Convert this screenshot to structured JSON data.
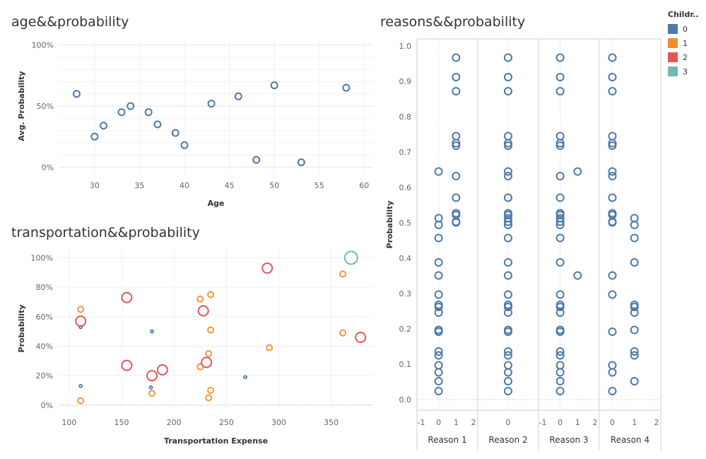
{
  "titles": {
    "age": "age&&probability",
    "transport": "transportation&&probability",
    "reasons": "reasons&&probability"
  },
  "legend": {
    "title": "Childr..",
    "items": [
      {
        "label": "0",
        "color": "#4e79a7"
      },
      {
        "label": "1",
        "color": "#f28e2b"
      },
      {
        "label": "2",
        "color": "#e15759"
      },
      {
        "label": "3",
        "color": "#76b7b2"
      }
    ]
  },
  "chart_data": [
    {
      "type": "scatter",
      "title": "age&&probability",
      "xlabel": "Age",
      "ylabel": "Avg. Probability",
      "xlim": [
        26,
        61
      ],
      "ylim": [
        -0.05,
        1.05
      ],
      "xticks": [
        30,
        35,
        40,
        45,
        50,
        55,
        60
      ],
      "yticks": [
        {
          "v": 0,
          "label": "0%"
        },
        {
          "v": 0.5,
          "label": "50%"
        },
        {
          "v": 1,
          "label": "100%"
        }
      ],
      "grid": true,
      "points": [
        {
          "x": 28,
          "y": 0.6
        },
        {
          "x": 30,
          "y": 0.25
        },
        {
          "x": 31,
          "y": 0.34
        },
        {
          "x": 33,
          "y": 0.45
        },
        {
          "x": 34,
          "y": 0.5
        },
        {
          "x": 36,
          "y": 0.45
        },
        {
          "x": 37,
          "y": 0.35
        },
        {
          "x": 39,
          "y": 0.28
        },
        {
          "x": 40,
          "y": 0.18
        },
        {
          "x": 43,
          "y": 0.52
        },
        {
          "x": 46,
          "y": 0.58
        },
        {
          "x": 48,
          "y": 0.06
        },
        {
          "x": 50,
          "y": 0.67
        },
        {
          "x": 53,
          "y": 0.04
        },
        {
          "x": 58,
          "y": 0.65
        }
      ]
    },
    {
      "type": "scatter",
      "title": "transportation&&probability",
      "xlabel": "Transportation Expense",
      "ylabel": "Probability",
      "xlim": [
        90,
        390
      ],
      "ylim": [
        -0.02,
        1.06
      ],
      "xticks": [
        100,
        150,
        200,
        250,
        300,
        350
      ],
      "yticks": [
        {
          "v": 0,
          "label": "0%"
        },
        {
          "v": 0.2,
          "label": "20%"
        },
        {
          "v": 0.4,
          "label": "40%"
        },
        {
          "v": 0.6,
          "label": "60%"
        },
        {
          "v": 0.8,
          "label": "80%"
        },
        {
          "v": 1,
          "label": "100%"
        }
      ],
      "grid": true,
      "points": [
        {
          "x": 111,
          "y": 0.53,
          "children": 0,
          "size": 2
        },
        {
          "x": 111,
          "y": 0.13,
          "children": 0,
          "size": 2
        },
        {
          "x": 179,
          "y": 0.5,
          "children": 0,
          "size": 2
        },
        {
          "x": 178,
          "y": 0.12,
          "children": 0,
          "size": 2
        },
        {
          "x": 268,
          "y": 0.19,
          "children": 0,
          "size": 2
        },
        {
          "x": 111,
          "y": 0.65,
          "children": 1,
          "size": 4
        },
        {
          "x": 111,
          "y": 0.03,
          "children": 1,
          "size": 4
        },
        {
          "x": 179,
          "y": 0.08,
          "children": 1,
          "size": 4
        },
        {
          "x": 225,
          "y": 0.72,
          "children": 1,
          "size": 4
        },
        {
          "x": 235,
          "y": 0.75,
          "children": 1,
          "size": 4
        },
        {
          "x": 235,
          "y": 0.51,
          "children": 1,
          "size": 4
        },
        {
          "x": 233,
          "y": 0.35,
          "children": 1,
          "size": 4
        },
        {
          "x": 225,
          "y": 0.26,
          "children": 1,
          "size": 4
        },
        {
          "x": 235,
          "y": 0.1,
          "children": 1,
          "size": 4
        },
        {
          "x": 233,
          "y": 0.05,
          "children": 1,
          "size": 4
        },
        {
          "x": 291,
          "y": 0.39,
          "children": 1,
          "size": 4
        },
        {
          "x": 361,
          "y": 0.89,
          "children": 1,
          "size": 4
        },
        {
          "x": 361,
          "y": 0.49,
          "children": 1,
          "size": 4
        },
        {
          "x": 111,
          "y": 0.57,
          "children": 2,
          "size": 7
        },
        {
          "x": 155,
          "y": 0.73,
          "children": 2,
          "size": 7
        },
        {
          "x": 155,
          "y": 0.27,
          "children": 2,
          "size": 7
        },
        {
          "x": 179,
          "y": 0.2,
          "children": 2,
          "size": 7
        },
        {
          "x": 189,
          "y": 0.24,
          "children": 2,
          "size": 7
        },
        {
          "x": 228,
          "y": 0.64,
          "children": 2,
          "size": 7
        },
        {
          "x": 231,
          "y": 0.29,
          "children": 2,
          "size": 7
        },
        {
          "x": 289,
          "y": 0.93,
          "children": 2,
          "size": 7
        },
        {
          "x": 378,
          "y": 0.46,
          "children": 2,
          "size": 7
        },
        {
          "x": 369,
          "y": 1.0,
          "children": 3,
          "size": 9
        }
      ]
    },
    {
      "type": "scatter",
      "title": "reasons&&probability",
      "ylabel": "Probability",
      "ylim": [
        -0.03,
        1.02
      ],
      "yticks": [
        0.0,
        0.1,
        0.2,
        0.3,
        0.4,
        0.5,
        0.6,
        0.7,
        0.8,
        0.9,
        1.0
      ],
      "facets": [
        {
          "label": "Reason 1",
          "xticks": [
            "-1",
            "0",
            "1",
            "2"
          ],
          "xlim": [
            -1,
            2
          ],
          "series": [
            {
              "x": 0,
              "y": [
                0.645,
                0.513,
                0.494,
                0.457,
                0.388,
                0.351,
                0.297,
                0.268,
                0.262,
                0.246,
                0.197,
                0.192,
                0.136,
                0.125,
                0.097,
                0.077,
                0.052,
                0.024
              ]
            },
            {
              "x": 1,
              "y": [
                0.967,
                0.912,
                0.872,
                0.745,
                0.725,
                0.718,
                0.632,
                0.571,
                0.527,
                0.522,
                0.503,
                0.501
              ]
            }
          ]
        },
        {
          "label": "Reason 2",
          "xticks": [
            "0"
          ],
          "xlim": [
            -0.5,
            0.5
          ],
          "series": [
            {
              "x": 0,
              "y": [
                0.967,
                0.912,
                0.872,
                0.745,
                0.725,
                0.718,
                0.645,
                0.632,
                0.571,
                0.527,
                0.522,
                0.513,
                0.503,
                0.494,
                0.457,
                0.388,
                0.351,
                0.297,
                0.268,
                0.262,
                0.246,
                0.197,
                0.192,
                0.136,
                0.125,
                0.097,
                0.077,
                0.052,
                0.024
              ]
            }
          ]
        },
        {
          "label": "Reason 3",
          "xticks": [
            "-1",
            "0",
            "1",
            "2"
          ],
          "xlim": [
            -1,
            2
          ],
          "series": [
            {
              "x": 0,
              "y": [
                0.967,
                0.912,
                0.872,
                0.745,
                0.725,
                0.718,
                0.632,
                0.571,
                0.527,
                0.522,
                0.513,
                0.503,
                0.494,
                0.457,
                0.388,
                0.297,
                0.268,
                0.262,
                0.246,
                0.197,
                0.192,
                0.136,
                0.125,
                0.097,
                0.077,
                0.052,
                0.024
              ]
            },
            {
              "x": 1,
              "y": [
                0.645,
                0.351
              ]
            }
          ]
        },
        {
          "label": "Reason 4",
          "xticks": [
            "0",
            "1",
            "2"
          ],
          "xlim": [
            -0.4,
            2
          ],
          "series": [
            {
              "x": 0,
              "y": [
                0.967,
                0.912,
                0.872,
                0.745,
                0.725,
                0.718,
                0.645,
                0.632,
                0.571,
                0.527,
                0.522,
                0.503,
                0.501,
                0.351,
                0.297,
                0.192,
                0.097,
                0.077,
                0.024
              ]
            },
            {
              "x": 1,
              "y": [
                0.513,
                0.494,
                0.457,
                0.388,
                0.268,
                0.262,
                0.246,
                0.197,
                0.136,
                0.125,
                0.052
              ]
            }
          ]
        }
      ]
    }
  ]
}
